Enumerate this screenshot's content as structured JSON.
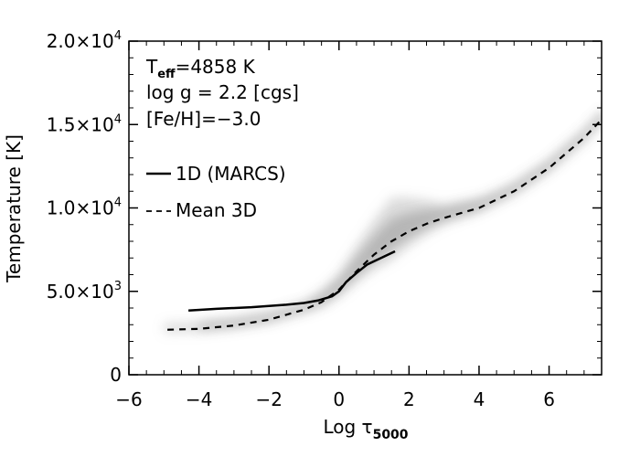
{
  "chart_data": {
    "type": "line",
    "xlabel": "Log τ",
    "xlabel_sub": "5000",
    "ylabel": "Temperature [K]",
    "xlim": [
      -6,
      7.5
    ],
    "ylim": [
      0,
      20000
    ],
    "x_ticks": [
      {
        "value": -6,
        "label": "−6"
      },
      {
        "value": -4,
        "label": "−4"
      },
      {
        "value": -2,
        "label": "−2"
      },
      {
        "value": 0,
        "label": "0"
      },
      {
        "value": 2,
        "label": "2"
      },
      {
        "value": 4,
        "label": "4"
      },
      {
        "value": 6,
        "label": "6"
      }
    ],
    "y_ticks": [
      {
        "value": 0,
        "mant": "0",
        "exp": ""
      },
      {
        "value": 5000,
        "mant": "5.0×10",
        "exp": "3"
      },
      {
        "value": 10000,
        "mant": "1.0×10",
        "exp": "4"
      },
      {
        "value": 15000,
        "mant": "1.5×10",
        "exp": "4"
      },
      {
        "value": 20000,
        "mant": "2.0×10",
        "exp": "4"
      }
    ],
    "annotations": {
      "teff_label": "T",
      "teff_sub": "eff",
      "teff_value": "=4858 K",
      "logg": "log g = 2.2 [cgs]",
      "feh": "[Fe/H]=−3.0"
    },
    "legend_position": "left",
    "series": [
      {
        "name": "1D (MARCS)",
        "style": "solid",
        "x": [
          -4.3,
          -3.5,
          -2.5,
          -1.5,
          -1.0,
          -0.6,
          -0.2,
          0.0,
          0.2,
          0.5,
          0.8,
          1.2,
          1.6
        ],
        "y": [
          3850,
          3950,
          4050,
          4200,
          4300,
          4450,
          4700,
          5000,
          5550,
          6100,
          6600,
          7000,
          7400
        ]
      },
      {
        "name": "Mean 3D",
        "style": "dashed",
        "x": [
          -4.9,
          -4.0,
          -3.0,
          -2.0,
          -1.0,
          -0.5,
          0.0,
          0.5,
          1.0,
          1.5,
          2.0,
          2.5,
          3.0,
          3.5,
          4.0,
          5.0,
          6.0,
          7.0,
          7.5
        ],
        "y": [
          2700,
          2750,
          2950,
          3300,
          3900,
          4350,
          5100,
          6200,
          7200,
          8000,
          8600,
          9050,
          9400,
          9700,
          10000,
          11000,
          12400,
          14200,
          15300
        ]
      }
    ],
    "colors": {
      "line": "#000000",
      "cloud": "#9a9a9a"
    }
  }
}
